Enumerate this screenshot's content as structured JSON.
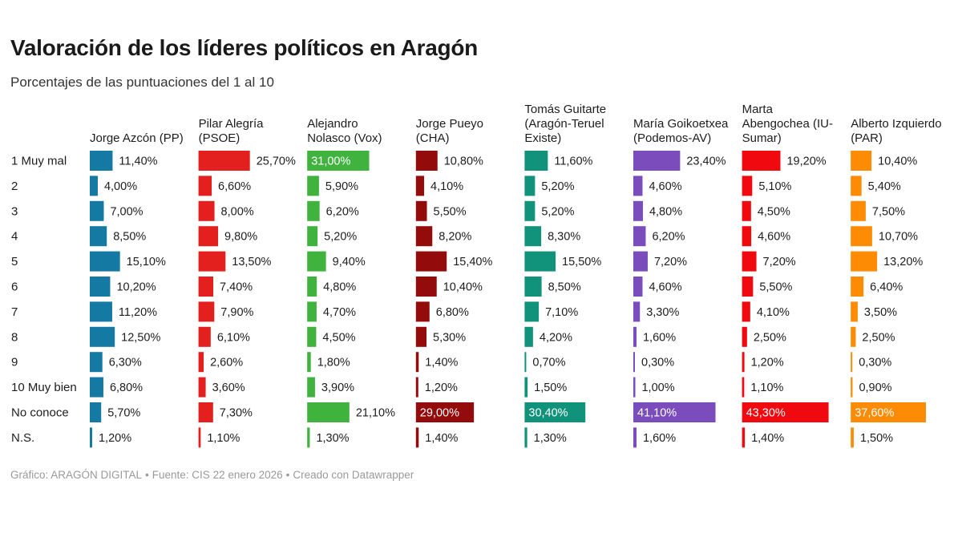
{
  "title": "Valoración de los líderes políticos en Aragón",
  "subtitle": "Porcentajes de las puntuaciones del 1 al 10",
  "footer": {
    "credit": "Gráfico: ARAGÓN DIGITAL",
    "source": "Fuente: CIS 22 enero 2026",
    "tool": "Creado con Datawrapper",
    "separator": "•"
  },
  "chart_data": {
    "type": "bar",
    "layout": "small-multiples-horizontal",
    "categories": [
      "1 Muy mal",
      "2",
      "3",
      "4",
      "5",
      "6",
      "7",
      "8",
      "9",
      "10 Muy bien",
      "No conoce",
      "N.S."
    ],
    "value_format": "comma-decimal-percent-2",
    "series": [
      {
        "name": "Jorge Azcón (PP)",
        "header_lines": [
          "Jorge Azcón (PP)"
        ],
        "color": "#1479a3",
        "values": [
          11.4,
          4.0,
          7.0,
          8.5,
          15.1,
          10.2,
          11.2,
          12.5,
          6.3,
          6.8,
          5.7,
          1.2
        ]
      },
      {
        "name": "Pilar Alegría (PSOE)",
        "header_lines": [
          "Pilar Alegría",
          "(PSOE)"
        ],
        "color": "#e3201e",
        "values": [
          25.7,
          6.6,
          8.0,
          9.8,
          13.5,
          7.4,
          7.9,
          6.1,
          2.6,
          3.6,
          7.3,
          1.1
        ]
      },
      {
        "name": "Alejandro Nolasco (Vox)",
        "header_lines": [
          "Alejandro",
          "Nolasco (Vox)"
        ],
        "color": "#3fb33e",
        "values": [
          31.0,
          5.9,
          6.2,
          5.2,
          9.4,
          4.8,
          4.7,
          4.5,
          1.8,
          3.9,
          21.1,
          1.3
        ]
      },
      {
        "name": "Jorge Pueyo (CHA)",
        "header_lines": [
          "Jorge Pueyo",
          "(CHA)"
        ],
        "color": "#930b0b",
        "values": [
          10.8,
          4.1,
          5.5,
          8.2,
          15.4,
          10.4,
          6.8,
          5.3,
          1.4,
          1.2,
          29.0,
          1.4
        ]
      },
      {
        "name": "Tomás Guitarte (Aragón-Teruel Existe)",
        "header_lines": [
          "Tomás Guitarte",
          "(Aragón-Teruel",
          "Existe)"
        ],
        "color": "#10927b",
        "values": [
          11.6,
          5.2,
          5.2,
          8.3,
          15.5,
          8.5,
          7.1,
          4.2,
          0.7,
          1.5,
          30.4,
          1.3
        ]
      },
      {
        "name": "María Goikoetxea (Podemos-AV)",
        "header_lines": [
          "María Goikoetxea",
          "(Podemos-AV)"
        ],
        "color": "#7a4cbc",
        "values": [
          23.4,
          4.6,
          4.8,
          6.2,
          7.2,
          4.6,
          3.3,
          1.6,
          0.3,
          1.0,
          41.1,
          1.6
        ]
      },
      {
        "name": "Marta Abengochea (IU-Sumar)",
        "header_lines": [
          "Marta",
          "Abengochea (IU-",
          "Sumar)"
        ],
        "color": "#f00a0f",
        "values": [
          19.2,
          5.1,
          4.5,
          4.6,
          7.2,
          5.5,
          4.1,
          2.5,
          1.2,
          1.1,
          43.3,
          1.4
        ]
      },
      {
        "name": "Alberto Izquierdo (PAR)",
        "header_lines": [
          "Alberto Izquierdo",
          "(PAR)"
        ],
        "color": "#fd8c04",
        "values": [
          10.4,
          5.4,
          7.5,
          10.7,
          13.2,
          6.4,
          3.5,
          2.5,
          0.3,
          0.9,
          37.6,
          1.5
        ]
      }
    ]
  }
}
